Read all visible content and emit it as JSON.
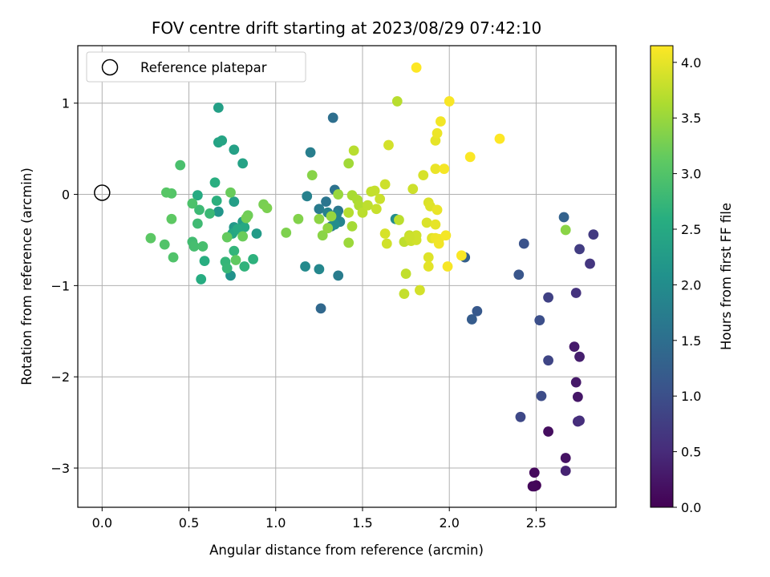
{
  "chart_data": {
    "type": "scatter",
    "title": "FOV centre drift starting at 2023/08/29 07:42:10",
    "xlabel": "Angular distance from reference (arcmin)",
    "ylabel": "Rotation from reference (arcmin)",
    "xlim": [
      -0.14,
      2.96
    ],
    "ylim": [
      -3.43,
      1.63
    ],
    "xticks": [
      "0.0",
      "0.5",
      "1.0",
      "1.5",
      "2.0",
      "2.5"
    ],
    "yticks": [
      "−3",
      "−2",
      "−1",
      "0",
      "1"
    ],
    "grid": true,
    "legend": {
      "label": "Reference platepar",
      "placement": "top-left"
    },
    "reference_point": {
      "x": 0.0,
      "y": 0.0
    },
    "colorbar": {
      "label": "Hours from first FF file",
      "colormap": "viridis",
      "range": [
        0.0,
        4.15
      ],
      "ticks": [
        "0.0",
        "0.5",
        "1.0",
        "1.5",
        "2.0",
        "2.5",
        "3.0",
        "3.5",
        "4.0"
      ]
    },
    "points": [
      [
        2.49,
        -3.2,
        0.02
      ],
      [
        2.5,
        -3.19,
        0.05
      ],
      [
        2.48,
        -3.2,
        0.08
      ],
      [
        2.49,
        -3.05,
        0.1
      ],
      [
        2.57,
        -2.6,
        0.15
      ],
      [
        2.67,
        -2.89,
        0.2
      ],
      [
        2.74,
        -2.22,
        0.25
      ],
      [
        2.73,
        -2.06,
        0.28
      ],
      [
        2.72,
        -1.67,
        0.3
      ],
      [
        2.75,
        -1.78,
        0.35
      ],
      [
        2.67,
        -3.03,
        0.4
      ],
      [
        2.74,
        -2.49,
        0.5
      ],
      [
        2.75,
        -2.48,
        0.55
      ],
      [
        2.73,
        -1.08,
        0.6
      ],
      [
        2.81,
        -0.76,
        0.65
      ],
      [
        2.83,
        -0.44,
        0.7
      ],
      [
        2.75,
        -0.6,
        0.75
      ],
      [
        2.57,
        -1.13,
        0.8
      ],
      [
        2.57,
        -1.82,
        0.85
      ],
      [
        2.41,
        -2.44,
        0.9
      ],
      [
        2.53,
        -2.21,
        0.95
      ],
      [
        2.52,
        -1.38,
        1.0
      ],
      [
        2.43,
        -0.54,
        1.05
      ],
      [
        2.4,
        -0.88,
        1.1
      ],
      [
        2.16,
        -1.28,
        1.15
      ],
      [
        2.13,
        -1.37,
        1.2
      ],
      [
        2.09,
        -0.69,
        1.25
      ],
      [
        2.66,
        -0.25,
        1.3
      ],
      [
        1.26,
        -1.25,
        1.4
      ],
      [
        1.33,
        0.84,
        1.5
      ],
      [
        1.34,
        0.05,
        1.55
      ],
      [
        1.29,
        -0.08,
        1.6
      ],
      [
        1.36,
        -0.18,
        1.62
      ],
      [
        1.32,
        -0.35,
        1.65
      ],
      [
        1.25,
        -0.16,
        1.7
      ],
      [
        1.36,
        -0.89,
        1.72
      ],
      [
        1.2,
        0.46,
        1.75
      ],
      [
        1.18,
        -0.02,
        1.8
      ],
      [
        1.3,
        -0.2,
        1.82
      ],
      [
        1.37,
        -0.3,
        1.85
      ],
      [
        1.35,
        -0.22,
        1.88
      ],
      [
        1.25,
        -0.82,
        1.9
      ],
      [
        1.17,
        -0.79,
        1.95
      ],
      [
        1.34,
        -0.33,
        2.0
      ],
      [
        1.69,
        -0.27,
        2.0
      ],
      [
        0.74,
        -0.89,
        2.1
      ],
      [
        0.67,
        -0.19,
        2.15
      ],
      [
        0.76,
        -0.36,
        2.2
      ],
      [
        0.76,
        -0.4,
        2.22
      ],
      [
        0.89,
        -0.43,
        2.25
      ],
      [
        0.81,
        -0.3,
        2.28
      ],
      [
        0.76,
        -0.08,
        2.3
      ],
      [
        0.67,
        0.95,
        2.32
      ],
      [
        0.76,
        0.49,
        2.35
      ],
      [
        0.81,
        0.34,
        2.38
      ],
      [
        0.67,
        0.57,
        2.4
      ],
      [
        0.69,
        0.59,
        2.42
      ],
      [
        0.75,
        -0.43,
        2.45
      ],
      [
        0.82,
        -0.36,
        2.48
      ],
      [
        0.78,
        -0.38,
        2.5
      ],
      [
        0.55,
        -0.01,
        2.52
      ],
      [
        0.57,
        -0.93,
        2.55
      ],
      [
        0.59,
        -0.73,
        2.58
      ],
      [
        0.65,
        0.13,
        2.6
      ],
      [
        0.66,
        -0.07,
        2.62
      ],
      [
        0.87,
        -0.71,
        2.65
      ],
      [
        0.82,
        -0.79,
        2.68
      ],
      [
        0.76,
        -0.62,
        2.7
      ],
      [
        0.71,
        -0.74,
        2.72
      ],
      [
        0.72,
        -0.81,
        2.75
      ],
      [
        0.62,
        -0.21,
        2.78
      ],
      [
        0.56,
        -0.17,
        2.8
      ],
      [
        0.55,
        -0.32,
        2.82
      ],
      [
        0.52,
        -0.52,
        2.85
      ],
      [
        0.53,
        -0.57,
        2.88
      ],
      [
        0.58,
        -0.57,
        2.9
      ],
      [
        0.45,
        0.32,
        2.92
      ],
      [
        0.52,
        -0.1,
        2.95
      ],
      [
        0.41,
        -0.69,
        2.98
      ],
      [
        0.36,
        -0.55,
        3.0
      ],
      [
        0.4,
        0.01,
        3.02
      ],
      [
        0.37,
        0.02,
        3.05
      ],
      [
        0.28,
        -0.48,
        3.08
      ],
      [
        0.4,
        -0.27,
        3.1
      ],
      [
        0.77,
        -0.72,
        3.12
      ],
      [
        0.72,
        -0.47,
        3.15
      ],
      [
        0.74,
        0.02,
        3.18
      ],
      [
        0.81,
        -0.46,
        3.2
      ],
      [
        0.84,
        -0.23,
        3.22
      ],
      [
        0.83,
        -0.26,
        3.25
      ],
      [
        0.93,
        -0.11,
        3.28
      ],
      [
        0.95,
        -0.15,
        3.3
      ],
      [
        1.06,
        -0.42,
        3.32
      ],
      [
        1.13,
        -0.27,
        3.35
      ],
      [
        1.21,
        0.21,
        3.38
      ],
      [
        1.27,
        -0.45,
        3.4
      ],
      [
        1.25,
        -0.27,
        3.42
      ],
      [
        1.3,
        -0.37,
        3.45
      ],
      [
        1.32,
        -0.24,
        3.48
      ],
      [
        1.36,
        0.0,
        3.5
      ],
      [
        1.42,
        -0.53,
        3.52
      ],
      [
        1.42,
        0.34,
        3.55
      ],
      [
        1.44,
        -0.35,
        3.58
      ],
      [
        1.44,
        -0.01,
        3.6
      ],
      [
        1.47,
        -0.06,
        3.62
      ],
      [
        1.48,
        -0.12,
        3.65
      ],
      [
        1.42,
        -0.2,
        3.68
      ],
      [
        1.45,
        0.48,
        3.7
      ],
      [
        1.5,
        -0.2,
        3.72
      ],
      [
        1.53,
        -0.12,
        3.74
      ],
      [
        1.55,
        0.03,
        3.76
      ],
      [
        1.57,
        0.04,
        3.78
      ],
      [
        1.58,
        -0.16,
        3.8
      ],
      [
        1.6,
        -0.05,
        3.82
      ],
      [
        1.63,
        0.11,
        3.84
      ],
      [
        1.64,
        -0.54,
        3.86
      ],
      [
        1.65,
        0.54,
        3.88
      ],
      [
        1.63,
        -0.43,
        3.9
      ],
      [
        1.7,
        1.02,
        3.7
      ],
      [
        1.71,
        -0.28,
        3.72
      ],
      [
        1.74,
        -0.52,
        3.74
      ],
      [
        1.75,
        -0.87,
        3.76
      ],
      [
        1.74,
        -1.09,
        3.78
      ],
      [
        1.77,
        -0.45,
        3.8
      ],
      [
        1.78,
        -0.51,
        3.82
      ],
      [
        1.79,
        0.06,
        3.84
      ],
      [
        1.81,
        -0.5,
        3.86
      ],
      [
        1.83,
        -1.05,
        3.88
      ],
      [
        1.85,
        0.21,
        3.9
      ],
      [
        1.87,
        -0.31,
        3.92
      ],
      [
        1.88,
        -0.09,
        3.93
      ],
      [
        1.88,
        -0.69,
        3.94
      ],
      [
        1.89,
        -0.13,
        3.95
      ],
      [
        1.9,
        -0.48,
        3.96
      ],
      [
        1.88,
        -0.79,
        3.98
      ],
      [
        1.92,
        -0.33,
        4.0
      ],
      [
        1.92,
        0.59,
        4.0
      ],
      [
        1.93,
        -0.17,
        4.02
      ],
      [
        1.92,
        0.28,
        4.03
      ],
      [
        1.93,
        0.67,
        4.04
      ],
      [
        1.92,
        -0.48,
        4.05
      ],
      [
        1.94,
        -0.49,
        4.06
      ],
      [
        1.94,
        -0.54,
        4.07
      ],
      [
        1.95,
        0.8,
        4.08
      ],
      [
        1.98,
        -0.45,
        4.09
      ],
      [
        1.97,
        0.28,
        4.1
      ],
      [
        1.99,
        -0.79,
        4.11
      ],
      [
        2.0,
        1.02,
        4.12
      ],
      [
        2.07,
        -0.67,
        4.13
      ],
      [
        2.12,
        0.41,
        4.14
      ],
      [
        2.29,
        0.61,
        4.15
      ],
      [
        1.81,
        1.39,
        4.15
      ],
      [
        1.81,
        -0.45,
        3.85
      ],
      [
        1.77,
        -0.47,
        3.83
      ],
      [
        2.67,
        -0.39,
        3.4
      ]
    ]
  }
}
